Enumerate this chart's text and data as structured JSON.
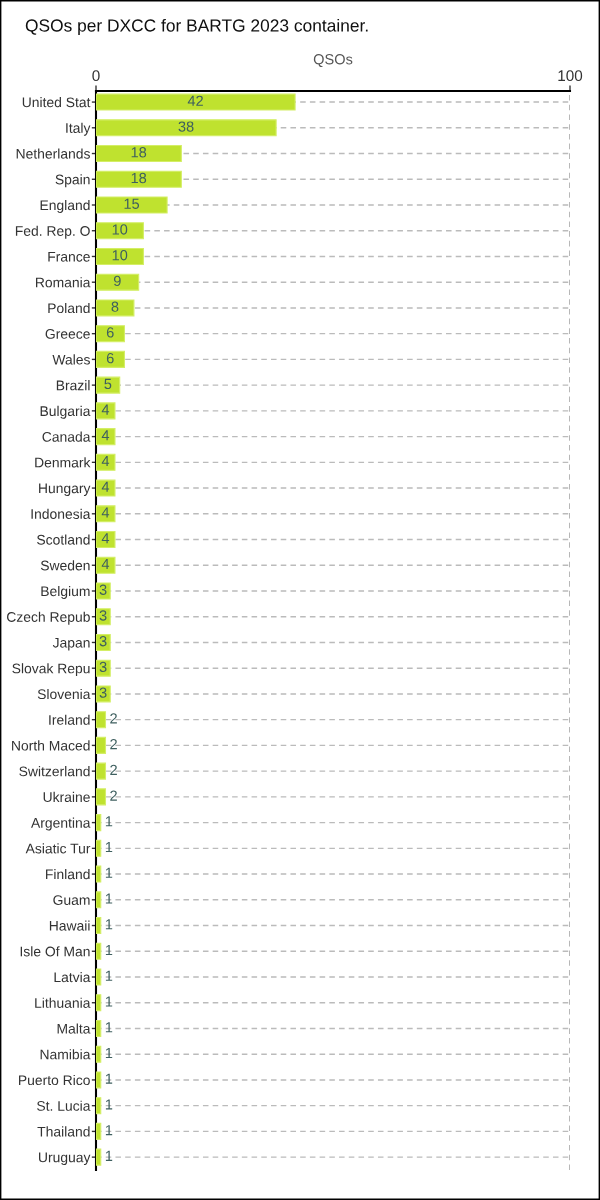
{
  "chart_data": {
    "type": "bar",
    "orientation": "horizontal",
    "title": "QSOs per DXCC for BARTG 2023 container.",
    "xlabel": "QSOs",
    "categories": [
      "United Stat",
      "Italy",
      "Netherlands",
      "Spain",
      "England",
      "Fed. Rep. O",
      "France",
      "Romania",
      "Poland",
      "Greece",
      "Wales",
      "Brazil",
      "Bulgaria",
      "Canada",
      "Denmark",
      "Hungary",
      "Indonesia",
      "Scotland",
      "Sweden",
      "Belgium",
      "Czech Repub",
      "Japan",
      "Slovak Repu",
      "Slovenia",
      "Ireland",
      "North Maced",
      "Switzerland",
      "Ukraine",
      "Argentina",
      "Asiatic Tur",
      "Finland",
      "Guam",
      "Hawaii",
      "Isle Of Man",
      "Latvia",
      "Lithuania",
      "Malta",
      "Namibia",
      "Puerto Rico",
      "St. Lucia",
      "Thailand",
      "Uruguay"
    ],
    "values": [
      42,
      38,
      18,
      18,
      15,
      10,
      10,
      9,
      8,
      6,
      6,
      5,
      4,
      4,
      4,
      4,
      4,
      4,
      4,
      3,
      3,
      3,
      3,
      3,
      2,
      2,
      2,
      2,
      1,
      1,
      1,
      1,
      1,
      1,
      1,
      1,
      1,
      1,
      1,
      1,
      1,
      1
    ],
    "color": "#bfe22f",
    "xlim": [
      0,
      100
    ],
    "xticks": [
      0,
      100
    ],
    "grid": true,
    "data_labels": true
  }
}
